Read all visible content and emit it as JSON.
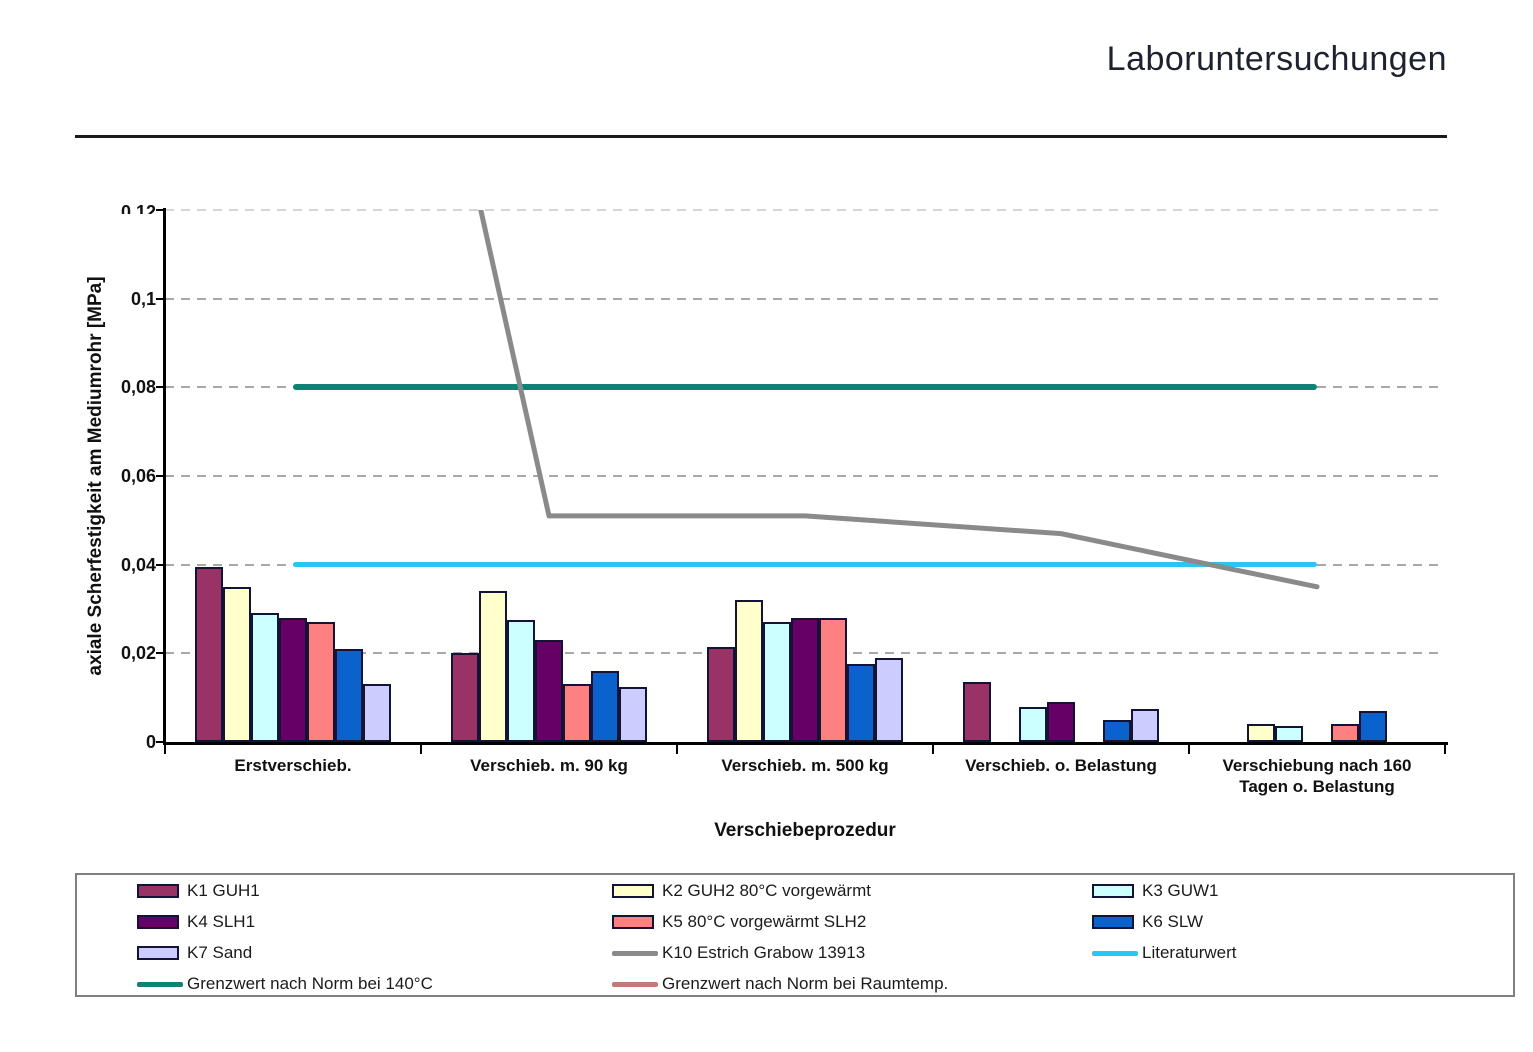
{
  "header": {
    "title": "Laboruntersuchungen"
  },
  "chart_data": {
    "type": "bar",
    "title": "Laboruntersuchungen",
    "xlabel": "Verschiebeprozedur",
    "ylabel": "axiale Scherfestigkeit am Mediumrohr [MPa]",
    "ylim": [
      0,
      0.12
    ],
    "ytick_step": 0.02,
    "ytick_labels": [
      "0",
      "0,02",
      "0,04",
      "0,06",
      "0,08",
      "0,1",
      "0,12"
    ],
    "ytick_top_clipped": "0,12",
    "grid": "horizontal dashed gridlines at each 0,02 step",
    "decimal_style": "german comma",
    "categories": [
      "Erstverschieb.",
      "Verschieb. m. 90 kg",
      "Verschieb. m. 500 kg",
      "Verschieb. o. Belastung",
      "Verschiebung nach 160 Tagen o. Belastung"
    ],
    "series": [
      {
        "name": "K1 GUH1",
        "color": "#993366",
        "values": [
          0.0395,
          0.02,
          0.0215,
          0.0135,
          null
        ]
      },
      {
        "name": "K2 GUH2 80°C vorgewärmt",
        "color": "#FFFFCC",
        "values": [
          0.035,
          0.034,
          0.032,
          null,
          0.004
        ]
      },
      {
        "name": "K3 GUW1",
        "color": "#CCFFFF",
        "values": [
          0.029,
          0.0275,
          0.027,
          0.008,
          0.0035
        ]
      },
      {
        "name": "K4 SLH1",
        "color": "#660066",
        "values": [
          0.028,
          0.023,
          0.028,
          0.009,
          null
        ]
      },
      {
        "name": "K5 80°C vorgewärmt SLH2",
        "color": "#FF8080",
        "values": [
          0.027,
          0.013,
          0.028,
          null,
          0.004
        ]
      },
      {
        "name": "K6 SLW",
        "color": "#0B62CC",
        "values": [
          0.021,
          0.016,
          0.0175,
          0.005,
          0.007
        ]
      },
      {
        "name": "K7 Sand",
        "color": "#CCCCFF",
        "values": [
          0.013,
          0.0125,
          0.019,
          0.0075,
          null
        ]
      }
    ],
    "line_series": [
      {
        "name": "K10 Estrich Grabow 13913",
        "color": "#8A8A8A",
        "values": [
          0.31,
          0.051,
          0.051,
          0.047,
          0.035
        ],
        "note": "first value is off-scale (>0,12) and clipped at the plot top"
      }
    ],
    "reference_lines": [
      {
        "name": "Grenzwert nach Norm bei 140°C",
        "value": 0.08,
        "color": "#0F8276"
      },
      {
        "name": "Literaturwert",
        "value": 0.04,
        "color": "#29C5F6"
      },
      {
        "name": "Grenzwert nach Norm bei Raumtemp.",
        "value": null,
        "color": "#C57A7A",
        "note": "appears in legend only, not visible in plot"
      }
    ],
    "legend_position": "boxed legend below chart, 3 columns"
  },
  "legend": {
    "columns": [
      [
        {
          "label": "K1 GUH1",
          "swatch": "bar",
          "color": "#993366"
        },
        {
          "label": "K4 SLH1",
          "swatch": "bar",
          "color": "#660066"
        },
        {
          "label": "K7 Sand",
          "swatch": "bar",
          "color": "#CCCCFF"
        },
        {
          "label": "Grenzwert nach Norm bei 140°C",
          "swatch": "line",
          "color": "#0F8276"
        }
      ],
      [
        {
          "label": "K2 GUH2 80°C vorgewärmt",
          "swatch": "bar",
          "color": "#FFFFCC"
        },
        {
          "label": "K5 80°C vorgewärmt SLH2",
          "swatch": "bar",
          "color": "#FF8080"
        },
        {
          "label": "K10 Estrich Grabow 13913",
          "swatch": "line",
          "color": "#8A8A8A"
        },
        {
          "label": "Grenzwert nach Norm bei Raumtemp.",
          "swatch": "line",
          "color": "#C57A7A"
        }
      ],
      [
        {
          "label": "K3 GUW1",
          "swatch": "bar",
          "color": "#CCFFFF"
        },
        {
          "label": "K6 SLW",
          "swatch": "bar",
          "color": "#0B62CC"
        },
        {
          "label": "Literaturwert",
          "swatch": "line",
          "color": "#29C5F6"
        }
      ]
    ]
  }
}
